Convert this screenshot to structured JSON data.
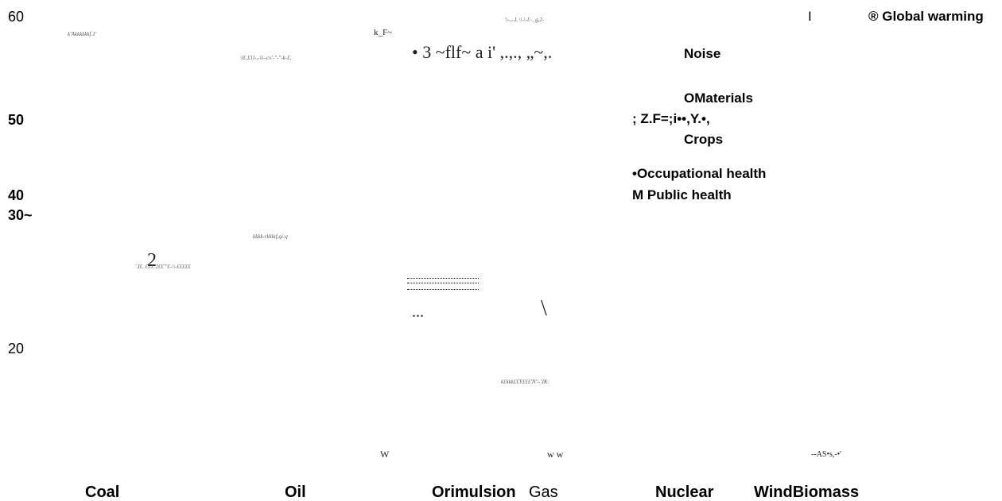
{
  "axis_labels": [
    "60",
    "50",
    "40",
    "30~",
    "20"
  ],
  "legend": [
    "I",
    "® Global warming",
    "Noise",
    "OMaterials",
    "; Z.F=;i••,Y.•,",
    "Crops",
    "•Occupational health",
    "M Public health"
  ],
  "categories": [
    "Coal",
    "Oil",
    "Orimulsion",
    "Gas",
    "Nuclear",
    "WindBiomass"
  ],
  "fragments": [
    "• 3 ~flf~ a i' ,.,., „~,.",
    "2",
    "...",
    "\\",
    "k_F~",
    "w w",
    "W",
    "--AS•s,-•'",
    "k'Akkkkkkf.1'",
    "\\l£,£1l-,-\\l--cv'-\"-\"-k-£,",
    "\\\\-,-.L \\\\-\\-l:-_g,2-",
    "'.I£. £LL'2££'\"£-\\\\-£££££",
    "kkkk-rkkkif,qi:q",
    "k£kkk££Y£££'N'/-'JK:"
  ]
}
